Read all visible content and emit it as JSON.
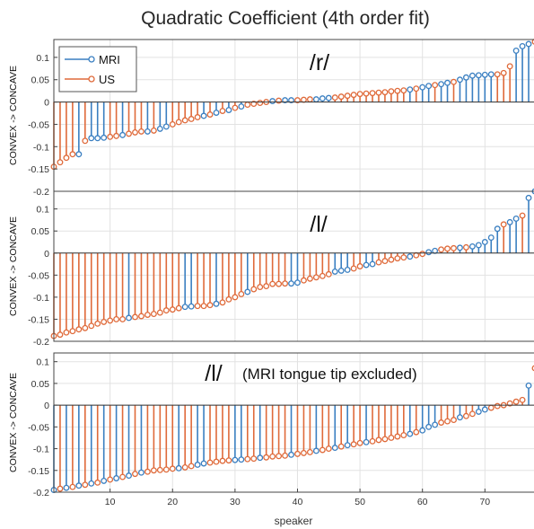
{
  "figure": {
    "title": "Quadratic Coefficient  (4th order fit)",
    "xlabel": "speaker"
  },
  "colors": {
    "MRI": "#3a7fc1",
    "US": "#df6a3a"
  },
  "legend": {
    "placement": "top-left",
    "entries": [
      "MRI",
      "US"
    ]
  },
  "chart_data": [
    {
      "type": "stem",
      "label": "/r/",
      "note": "",
      "ylabel": "CONVEX -> CONCAVE",
      "xlim": [
        1,
        78
      ],
      "ylim": [
        -0.2,
        0.14
      ],
      "yticks": [
        0.1,
        0.05,
        0,
        -0.05,
        -0.1,
        -0.15,
        -0.2
      ],
      "ytick_labels": [
        "0.1",
        "0.05",
        "0",
        "-0.05",
        "-0.1",
        "-0.15",
        "-0.2"
      ],
      "grid": true,
      "legend": true,
      "series_order": [
        "US",
        "US",
        "US",
        "US",
        "MRI",
        "US",
        "MRI",
        "MRI",
        "MRI",
        "US",
        "US",
        "MRI",
        "US",
        "US",
        "US",
        "MRI",
        "US",
        "MRI",
        "MRI",
        "US",
        "US",
        "US",
        "US",
        "US",
        "MRI",
        "US",
        "MRI",
        "US",
        "MRI",
        "US",
        "MRI",
        "US",
        "US",
        "US",
        "US",
        "MRI",
        "US",
        "MRI",
        "MRI",
        "US",
        "US",
        "US",
        "MRI",
        "MRI",
        "MRI",
        "US",
        "US",
        "US",
        "US",
        "US",
        "US",
        "US",
        "US",
        "US",
        "US",
        "US",
        "US",
        "MRI",
        "US",
        "MRI",
        "MRI",
        "US",
        "MRI",
        "MRI",
        "US",
        "MRI",
        "MRI",
        "MRI",
        "MRI",
        "MRI",
        "MRI",
        "US",
        "US",
        "US",
        "MRI",
        "MRI",
        "MRI",
        "US"
      ],
      "values": [
        -0.145,
        -0.135,
        -0.125,
        -0.117,
        -0.117,
        -0.087,
        -0.081,
        -0.081,
        -0.08,
        -0.078,
        -0.076,
        -0.074,
        -0.071,
        -0.068,
        -0.066,
        -0.066,
        -0.064,
        -0.06,
        -0.055,
        -0.05,
        -0.045,
        -0.041,
        -0.038,
        -0.034,
        -0.031,
        -0.028,
        -0.024,
        -0.02,
        -0.018,
        -0.013,
        -0.01,
        -0.006,
        -0.004,
        -0.002,
        0,
        0.002,
        0.003,
        0.004,
        0.004,
        0.004,
        0.005,
        0.006,
        0.006,
        0.008,
        0.009,
        0.01,
        0.012,
        0.014,
        0.016,
        0.018,
        0.019,
        0.02,
        0.021,
        0.022,
        0.024,
        0.025,
        0.026,
        0.028,
        0.03,
        0.033,
        0.036,
        0.038,
        0.04,
        0.043,
        0.045,
        0.05,
        0.055,
        0.059,
        0.06,
        0.061,
        0.062,
        0.062,
        0.065,
        0.08,
        0.115,
        0.125,
        0.13,
        0.135
      ]
    },
    {
      "type": "stem",
      "label": "/l/",
      "note": "",
      "ylabel": "CONVEX -> CONCAVE",
      "xlim": [
        1,
        78
      ],
      "ylim": [
        -0.2,
        0.14
      ],
      "yticks": [
        0.1,
        0.05,
        0,
        -0.05,
        -0.1,
        -0.15,
        -0.2
      ],
      "ytick_labels": [
        "0.1",
        "0.05",
        "0",
        "-0.05",
        "-0.1",
        "-0.15",
        "-0.2"
      ],
      "grid": true,
      "legend": false,
      "series_order": [
        "US",
        "US",
        "US",
        "US",
        "US",
        "US",
        "US",
        "US",
        "US",
        "US",
        "US",
        "US",
        "MRI",
        "US",
        "US",
        "US",
        "US",
        "US",
        "US",
        "US",
        "US",
        "MRI",
        "MRI",
        "US",
        "US",
        "US",
        "MRI",
        "US",
        "US",
        "US",
        "US",
        "MRI",
        "US",
        "US",
        "US",
        "US",
        "US",
        "US",
        "MRI",
        "MRI",
        "US",
        "US",
        "US",
        "US",
        "US",
        "MRI",
        "MRI",
        "MRI",
        "US",
        "US",
        "MRI",
        "MRI",
        "US",
        "US",
        "US",
        "US",
        "US",
        "MRI",
        "US",
        "US",
        "MRI",
        "MRI",
        "US",
        "US",
        "US",
        "MRI",
        "US",
        "MRI",
        "MRI",
        "MRI",
        "MRI",
        "MRI",
        "US",
        "MRI",
        "MRI",
        "US",
        "MRI",
        "MRI"
      ],
      "values": [
        -0.188,
        -0.185,
        -0.18,
        -0.177,
        -0.173,
        -0.17,
        -0.165,
        -0.16,
        -0.156,
        -0.153,
        -0.15,
        -0.15,
        -0.147,
        -0.145,
        -0.143,
        -0.14,
        -0.138,
        -0.135,
        -0.13,
        -0.128,
        -0.125,
        -0.122,
        -0.121,
        -0.12,
        -0.12,
        -0.118,
        -0.115,
        -0.112,
        -0.105,
        -0.1,
        -0.093,
        -0.088,
        -0.082,
        -0.077,
        -0.075,
        -0.07,
        -0.07,
        -0.069,
        -0.069,
        -0.067,
        -0.062,
        -0.058,
        -0.055,
        -0.052,
        -0.048,
        -0.042,
        -0.04,
        -0.038,
        -0.035,
        -0.03,
        -0.027,
        -0.025,
        -0.021,
        -0.018,
        -0.015,
        -0.012,
        -0.01,
        -0.008,
        -0.005,
        -0.002,
        0.002,
        0.005,
        0.008,
        0.01,
        0.011,
        0.012,
        0.013,
        0.015,
        0.018,
        0.025,
        0.035,
        0.055,
        0.065,
        0.07,
        0.078,
        0.085,
        0.125,
        0.14
      ]
    },
    {
      "type": "stem",
      "label": "/l/",
      "note": "(MRI tongue tip excluded)",
      "ylabel": "CONVEX -> CONCAVE",
      "xlim": [
        1,
        78
      ],
      "ylim": [
        -0.2,
        0.12
      ],
      "yticks": [
        0.1,
        0.05,
        0,
        -0.05,
        -0.1,
        -0.15,
        -0.2
      ],
      "ytick_labels": [
        "0.1",
        "0.05",
        "0",
        "-0.05",
        "-0.1",
        "-0.15",
        "-0.2"
      ],
      "xticks": [
        10,
        20,
        30,
        40,
        50,
        60,
        70
      ],
      "xtick_labels": [
        "10",
        "20",
        "30",
        "40",
        "50",
        "60",
        "70"
      ],
      "grid": true,
      "legend": false,
      "series_order": [
        "MRI",
        "US",
        "MRI",
        "US",
        "MRI",
        "US",
        "MRI",
        "US",
        "MRI",
        "US",
        "MRI",
        "US",
        "MRI",
        "US",
        "MRI",
        "US",
        "US",
        "US",
        "US",
        "US",
        "MRI",
        "US",
        "US",
        "MRI",
        "MRI",
        "US",
        "US",
        "US",
        "US",
        "MRI",
        "MRI",
        "US",
        "US",
        "MRI",
        "US",
        "US",
        "US",
        "US",
        "MRI",
        "US",
        "US",
        "US",
        "MRI",
        "US",
        "US",
        "MRI",
        "US",
        "MRI",
        "US",
        "US",
        "MRI",
        "US",
        "US",
        "US",
        "US",
        "US",
        "US",
        "MRI",
        "US",
        "MRI",
        "MRI",
        "MRI",
        "US",
        "US",
        "US",
        "MRI",
        "US",
        "US",
        "MRI",
        "MRI",
        "US",
        "US",
        "US",
        "US",
        "US",
        "US",
        "MRI",
        "US"
      ],
      "values": [
        -0.195,
        -0.192,
        -0.19,
        -0.188,
        -0.185,
        -0.183,
        -0.18,
        -0.178,
        -0.174,
        -0.171,
        -0.168,
        -0.165,
        -0.162,
        -0.158,
        -0.155,
        -0.153,
        -0.15,
        -0.149,
        -0.148,
        -0.146,
        -0.145,
        -0.143,
        -0.14,
        -0.137,
        -0.134,
        -0.132,
        -0.13,
        -0.128,
        -0.127,
        -0.126,
        -0.125,
        -0.124,
        -0.123,
        -0.121,
        -0.12,
        -0.118,
        -0.117,
        -0.116,
        -0.114,
        -0.112,
        -0.11,
        -0.108,
        -0.105,
        -0.103,
        -0.1,
        -0.098,
        -0.095,
        -0.092,
        -0.09,
        -0.087,
        -0.085,
        -0.083,
        -0.08,
        -0.078,
        -0.075,
        -0.072,
        -0.069,
        -0.066,
        -0.062,
        -0.058,
        -0.05,
        -0.045,
        -0.04,
        -0.037,
        -0.034,
        -0.028,
        -0.025,
        -0.02,
        -0.015,
        -0.01,
        -0.006,
        -0.002,
        0,
        0.004,
        0.008,
        0.012,
        0.045,
        0.085
      ]
    }
  ]
}
